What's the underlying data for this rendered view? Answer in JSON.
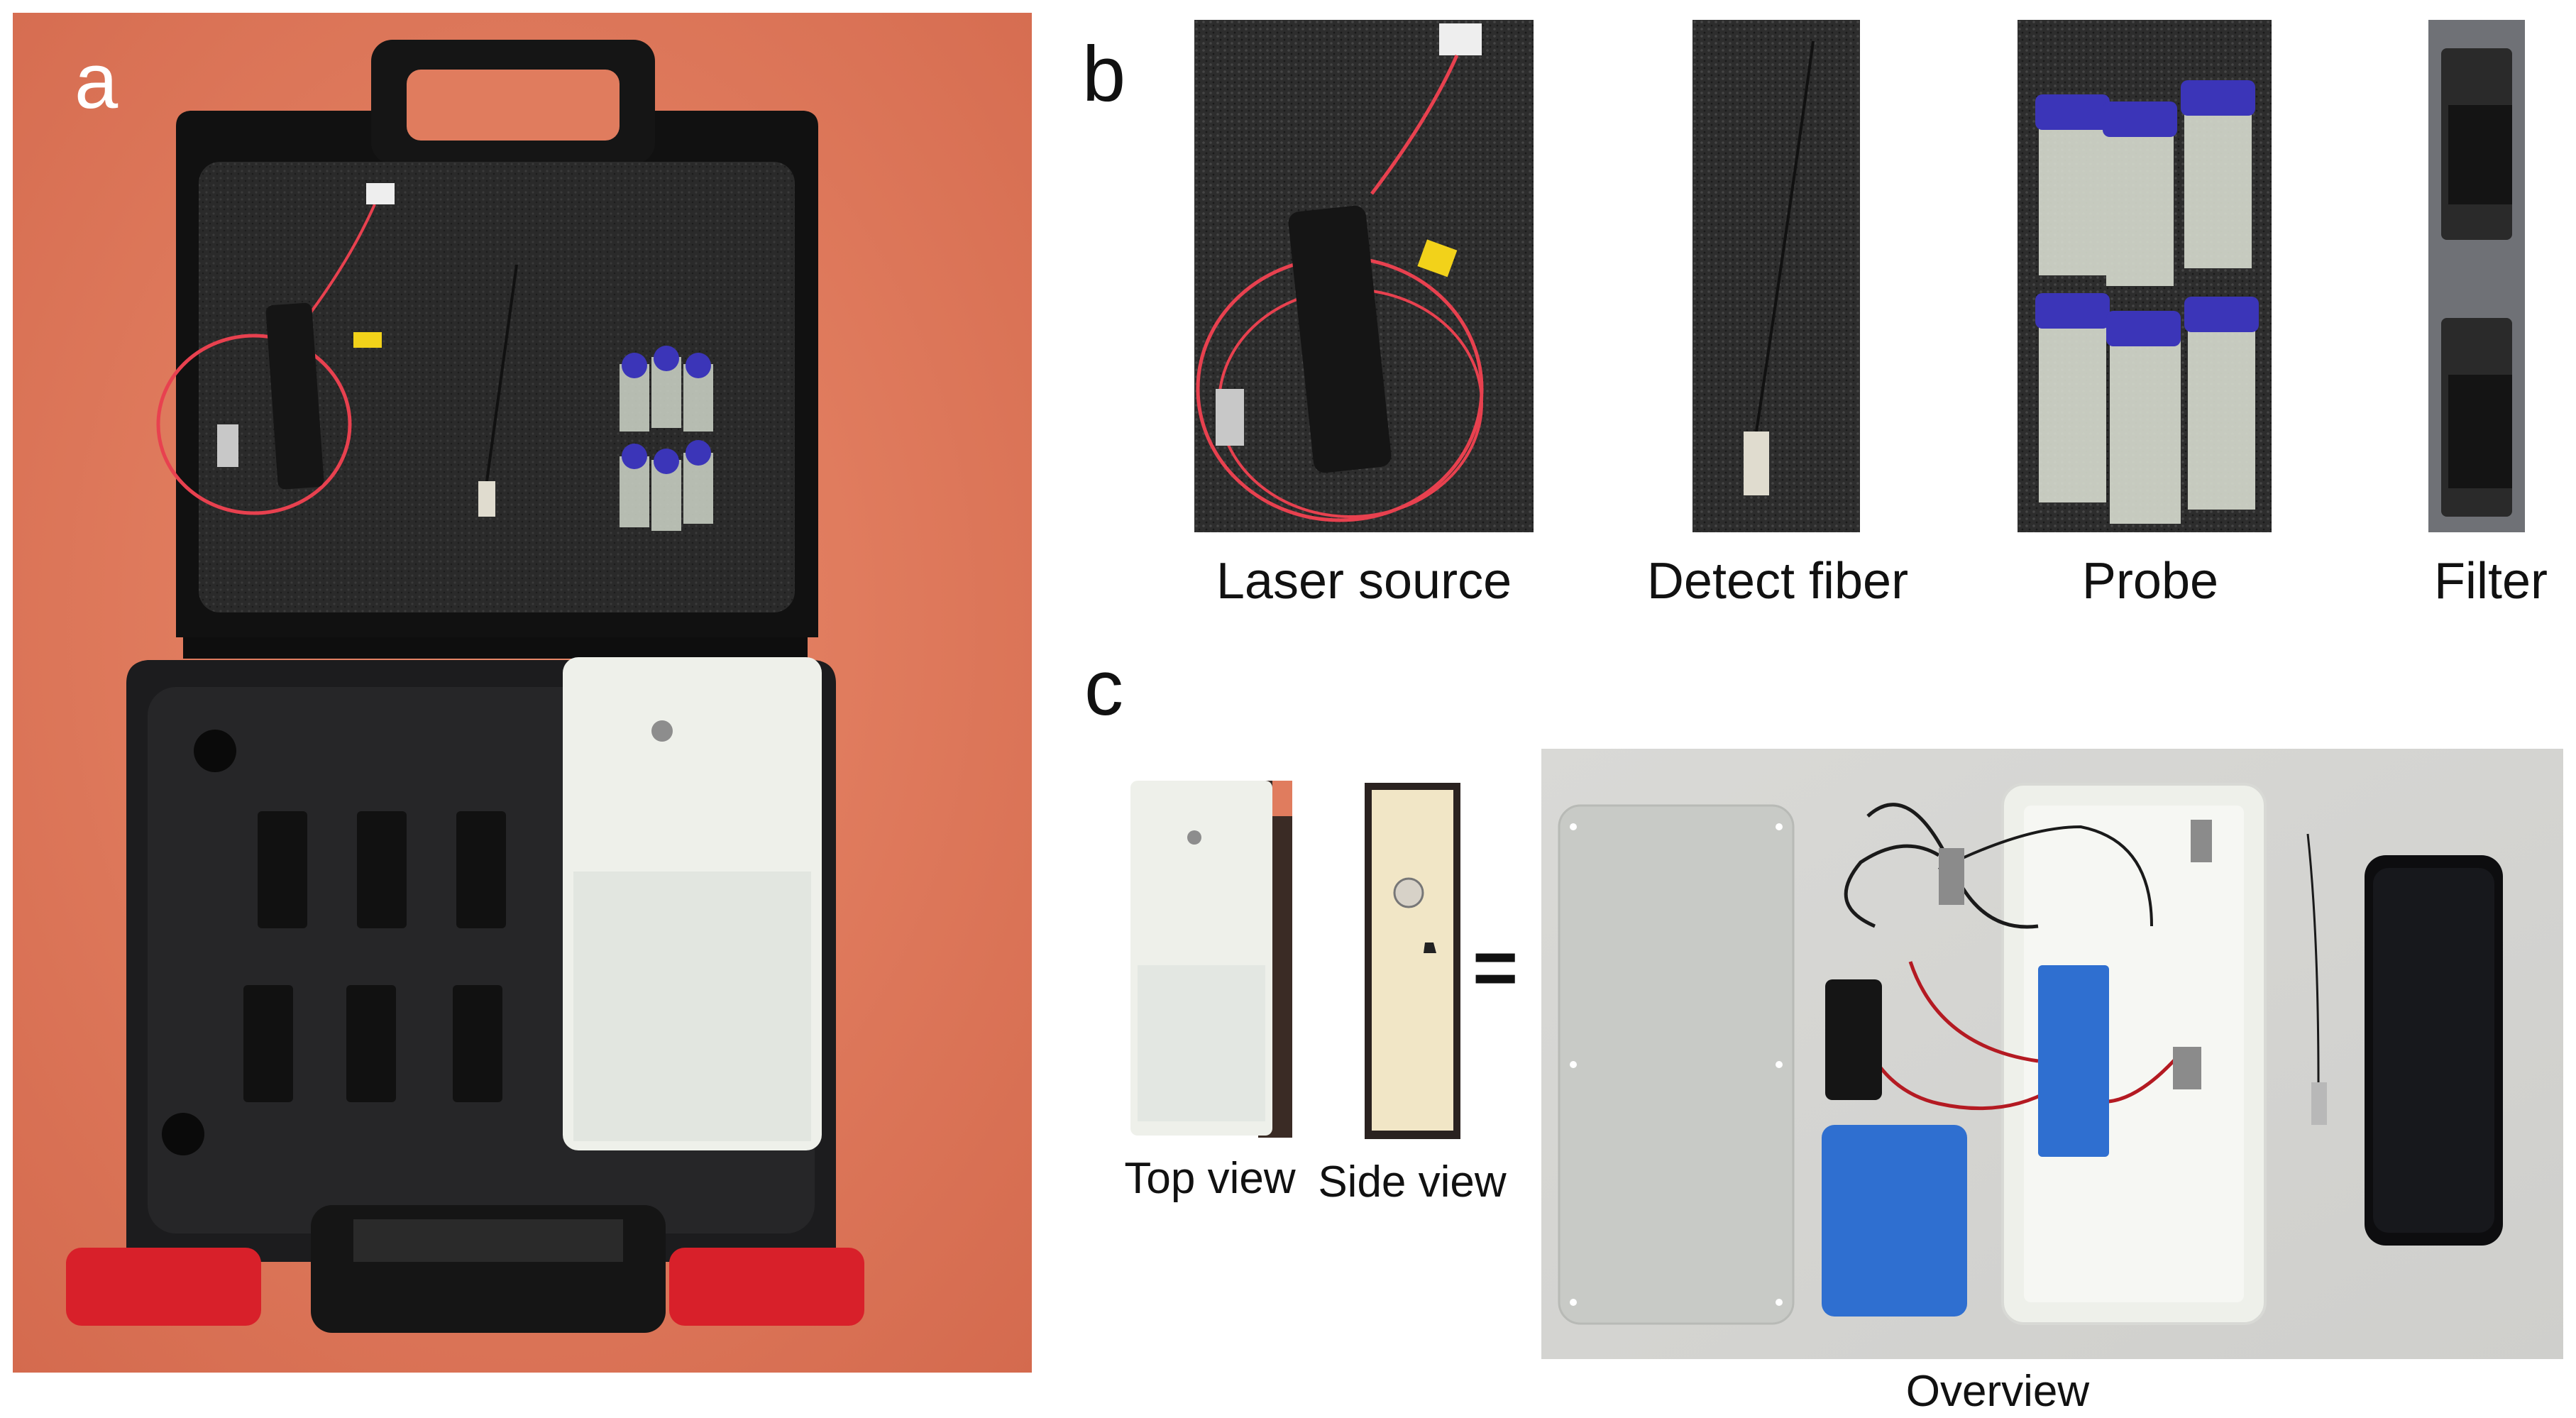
{
  "panels": {
    "a": {
      "letter": "a"
    },
    "b": {
      "letter": "b",
      "items": [
        {
          "label": "Laser source"
        },
        {
          "label": "Detect fiber"
        },
        {
          "label": "Probe"
        },
        {
          "label": "Filter"
        }
      ]
    },
    "c": {
      "letter": "c",
      "top_view": "Top view",
      "side_view": "Side view",
      "equals": "=",
      "overview": "Overview"
    }
  },
  "colors": {
    "background_table": "#e07c5e",
    "case_black": "#1c1c1e",
    "foam": "#2b2b2b",
    "latch_red": "#d8202a",
    "fiber_red": "#e8414f",
    "vial_cap": "#3b35b8",
    "battery_blue": "#2f6fd0",
    "white_box": "#eef0ea"
  }
}
